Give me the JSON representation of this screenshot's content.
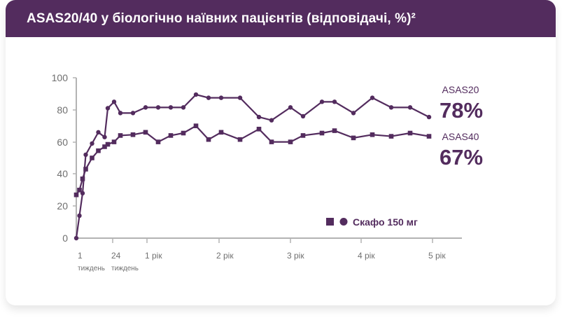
{
  "header": {
    "title": "ASAS20/40 у біологічно наївних пацієнтів (відповідачі, %)²"
  },
  "colors": {
    "brand": "#532c5e",
    "axis": "#b3b3b3",
    "tick_text": "#6f6f6f"
  },
  "labels": {
    "asas20_name": "ASAS20",
    "asas20_value": "78%",
    "asas40_name": "ASAS40",
    "asas40_value": "67%",
    "legend": "Скафо 150 мг",
    "x_ticks": [
      "1",
      "24",
      "1 рік",
      "2 рік",
      "3 рік",
      "4 рік",
      "5 рік"
    ],
    "x_subticks": [
      "тиждень",
      "тиждень"
    ],
    "y_ticks": [
      "100",
      "80",
      "60",
      "40",
      "20",
      "0"
    ]
  },
  "chart_data": {
    "type": "line",
    "title": "ASAS20/40 у біологічно наївних пацієнтів (відповідачі, %)²",
    "xlabel": "",
    "ylabel": "",
    "ylim": [
      0,
      100
    ],
    "yticks": [
      0,
      20,
      40,
      60,
      80,
      100
    ],
    "xticks": [
      "1 тиждень",
      "24 тиждень",
      "1 рік",
      "2 рік",
      "3 рік",
      "4 рік",
      "5 рік"
    ],
    "grid": false,
    "legend": {
      "entries": [
        "Скафо 150 мг"
      ],
      "position": "lower right"
    },
    "annotations": [
      {
        "text": "ASAS20",
        "value": "78%"
      },
      {
        "text": "ASAS40",
        "value": "67%"
      }
    ],
    "series": [
      {
        "name": "ASAS20",
        "marker": "circle",
        "points": [
          [
            0,
            0
          ],
          [
            1,
            14
          ],
          [
            2,
            28
          ],
          [
            3,
            52
          ],
          [
            5,
            59
          ],
          [
            7,
            66
          ],
          [
            9,
            63
          ],
          [
            10,
            81
          ],
          [
            12,
            85
          ],
          [
            14,
            78
          ],
          [
            18,
            78
          ],
          [
            22,
            81.5
          ],
          [
            26,
            81.5
          ],
          [
            30,
            81.5
          ],
          [
            34,
            81.5
          ],
          [
            38,
            89.5
          ],
          [
            42,
            87.5
          ],
          [
            46,
            87.5
          ],
          [
            52,
            87.5
          ],
          [
            58,
            75.5
          ],
          [
            62,
            73.5
          ],
          [
            68,
            81.5
          ],
          [
            72,
            76
          ],
          [
            78,
            85
          ],
          [
            82,
            85
          ],
          [
            88,
            78
          ],
          [
            94,
            87.5
          ],
          [
            100,
            81.5
          ],
          [
            106,
            81.5
          ],
          [
            112,
            75.5
          ]
        ]
      },
      {
        "name": "ASAS40",
        "marker": "square",
        "points": [
          [
            0,
            27
          ],
          [
            1,
            30
          ],
          [
            2,
            37
          ],
          [
            3,
            43
          ],
          [
            5,
            50
          ],
          [
            7,
            54.5
          ],
          [
            9,
            57
          ],
          [
            10,
            58.5
          ],
          [
            12,
            60
          ],
          [
            14,
            64
          ],
          [
            18,
            64.5
          ],
          [
            22,
            66
          ],
          [
            26,
            60
          ],
          [
            30,
            64
          ],
          [
            34,
            65.5
          ],
          [
            38,
            70
          ],
          [
            42,
            61.5
          ],
          [
            46,
            66
          ],
          [
            52,
            61.5
          ],
          [
            58,
            68
          ],
          [
            62,
            60
          ],
          [
            68,
            60
          ],
          [
            72,
            64
          ],
          [
            78,
            65.5
          ],
          [
            82,
            67
          ],
          [
            88,
            62.5
          ],
          [
            94,
            64.5
          ],
          [
            100,
            63.5
          ],
          [
            106,
            65.5
          ],
          [
            112,
            63.5
          ]
        ]
      }
    ]
  }
}
